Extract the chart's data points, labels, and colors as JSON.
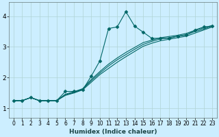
{
  "xlabel": "Humidex (Indice chaleur)",
  "bg_color": "#cceeff",
  "grid_color": "#b0d4d4",
  "line_color": "#006666",
  "xlim": [
    -0.5,
    23.5
  ],
  "ylim": [
    0.7,
    4.45
  ],
  "xticks": [
    0,
    1,
    2,
    3,
    4,
    5,
    6,
    7,
    8,
    9,
    10,
    11,
    12,
    13,
    14,
    15,
    16,
    17,
    18,
    19,
    20,
    21,
    22,
    23
  ],
  "yticks": [
    1,
    2,
    3,
    4
  ],
  "series_linear": [
    [
      1.25,
      1.25,
      1.35,
      1.25,
      1.25,
      1.25,
      1.42,
      1.5,
      1.6,
      1.85,
      2.1,
      2.3,
      2.5,
      2.68,
      2.85,
      3.02,
      3.12,
      3.2,
      3.25,
      3.3,
      3.35,
      3.45,
      3.55,
      3.65
    ],
    [
      1.25,
      1.25,
      1.35,
      1.25,
      1.25,
      1.25,
      1.44,
      1.52,
      1.62,
      1.9,
      2.15,
      2.38,
      2.58,
      2.75,
      2.92,
      3.08,
      3.18,
      3.26,
      3.3,
      3.35,
      3.4,
      3.5,
      3.58,
      3.68
    ],
    [
      1.25,
      1.25,
      1.35,
      1.25,
      1.25,
      1.25,
      1.46,
      1.54,
      1.64,
      1.94,
      2.2,
      2.44,
      2.64,
      2.82,
      2.98,
      3.14,
      3.22,
      3.3,
      3.34,
      3.38,
      3.44,
      3.54,
      3.62,
      3.7
    ]
  ],
  "series_jagged": [
    1.25,
    1.25,
    1.35,
    1.25,
    1.25,
    1.25,
    1.55,
    1.55,
    1.6,
    2.05,
    2.55,
    3.6,
    3.65,
    4.15,
    3.68,
    3.48,
    3.28,
    3.28,
    3.28,
    3.35,
    3.38,
    3.55,
    3.65,
    3.68
  ],
  "marker": "D",
  "marker_size": 2.5,
  "linewidth": 0.8
}
